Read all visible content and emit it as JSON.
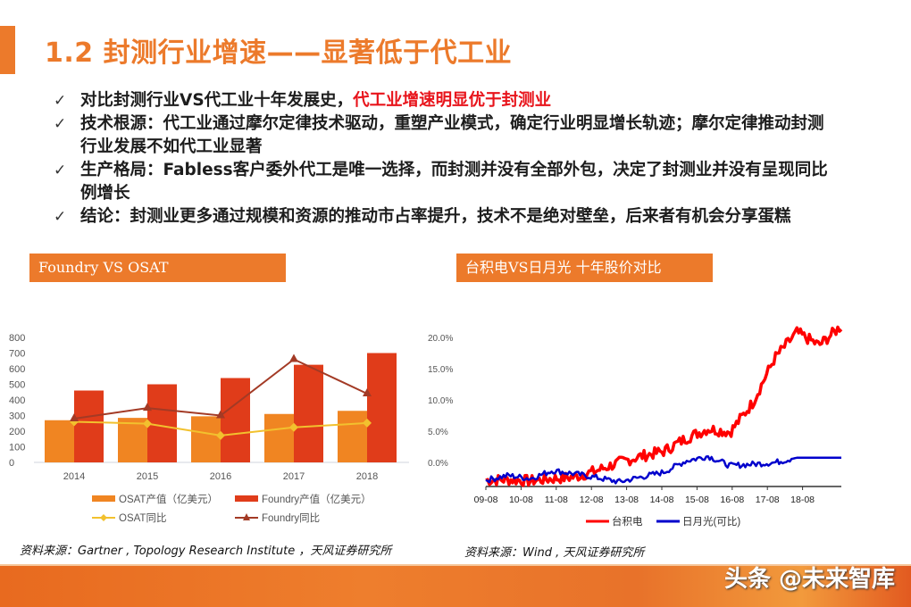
{
  "page": {
    "title": "1.2 封测行业增速——显著低于代工业",
    "accent_color": "#ec7a2b",
    "highlight_color": "#e8141b"
  },
  "bullets": [
    {
      "check": "✓",
      "text": "对比封测行业VS代工业十年发展史，",
      "highlight": "代工业增速明显优于封测业"
    },
    {
      "check": "✓",
      "text": "技术根源：代工业通过摩尔定律技术驱动，重塑产业模式，确定行业明显增长轨迹；摩尔定律推动封测行业发展不如代工业显著",
      "highlight": ""
    },
    {
      "check": "✓",
      "text": "生产格局：Fabless客户委外代工是唯一选择，而封测并没有全部外包，决定了封测业并没有呈现同比例增长",
      "highlight": ""
    },
    {
      "check": "✓",
      "text": "结论：封测业更多通过规模和资源的推动市占率提升，技术不是绝对壁垒，后来者有机会分享蛋糕",
      "highlight": ""
    }
  ],
  "left_panel": {
    "header": "Foundry VS OSAT",
    "source": "资料来源：Gartner , Topology Research Institute ，天风证券研究所"
  },
  "right_panel": {
    "header": "台积电VS日月光 十年股价对比",
    "source": "资料来源：Wind , 天风证券研究所"
  },
  "footer": {
    "watermark": "头条 @未来智库"
  },
  "chart_data": [
    {
      "type": "bar",
      "title": "Foundry VS OSAT",
      "categories": [
        "2014",
        "2015",
        "2016",
        "2017",
        "2018"
      ],
      "series": [
        {
          "name": "OSAT产值（亿美元）",
          "kind": "bar",
          "axis": "left",
          "color": "#f08522",
          "values": [
            270,
            285,
            295,
            310,
            330
          ]
        },
        {
          "name": "Foundry产值（亿美元）",
          "kind": "bar",
          "axis": "left",
          "color": "#e03c1a",
          "values": [
            460,
            500,
            540,
            625,
            700
          ]
        },
        {
          "name": "OSAT同比",
          "kind": "line",
          "axis": "right",
          "marker": "diamond",
          "color": "#f2c12e",
          "values": [
            6.5,
            6.2,
            4.3,
            5.6,
            6.3
          ]
        },
        {
          "name": "Foundry同比",
          "kind": "line",
          "axis": "right",
          "marker": "triangle",
          "color": "#a33a25",
          "values": [
            7.0,
            8.7,
            7.5,
            16.5,
            11.0
          ]
        }
      ],
      "left_axis": {
        "ticks": [
          "0",
          "100",
          "200",
          "300",
          "400",
          "500",
          "600",
          "700",
          "800"
        ],
        "range": [
          0,
          800
        ]
      },
      "right_axis": {
        "ticks": [
          "0.0%",
          "5.0%",
          "10.0%",
          "15.0%",
          "20.0%"
        ],
        "range": [
          0,
          20
        ]
      },
      "legend_position": "bottom",
      "grid": false
    },
    {
      "type": "line",
      "title": "台积电VS日月光 十年股价对比",
      "x_ticks": [
        "09-08",
        "10-08",
        "11-08",
        "12-08",
        "13-08",
        "14-08",
        "15-08",
        "16-08",
        "17-08",
        "18-08"
      ],
      "series": [
        {
          "name": "台积电",
          "color": "#ff0000",
          "values": [
            1.0,
            1.02,
            0.98,
            1.05,
            1.1,
            1.3,
            1.55,
            1.75,
            1.9,
            2.3,
            2.6,
            2.5,
            3.4,
            4.8,
            5.6,
            5.2,
            5.8
          ]
        },
        {
          "name": "日月光(可比)",
          "color": "#0000cc",
          "values": [
            1.0,
            1.15,
            1.05,
            1.3,
            1.2,
            1.08,
            0.95,
            1.1,
            1.25,
            1.6,
            1.75,
            1.45,
            1.5,
            1.55,
            1.7,
            1.7,
            1.7
          ]
        }
      ],
      "legend_position": "bottom",
      "grid": false
    }
  ]
}
